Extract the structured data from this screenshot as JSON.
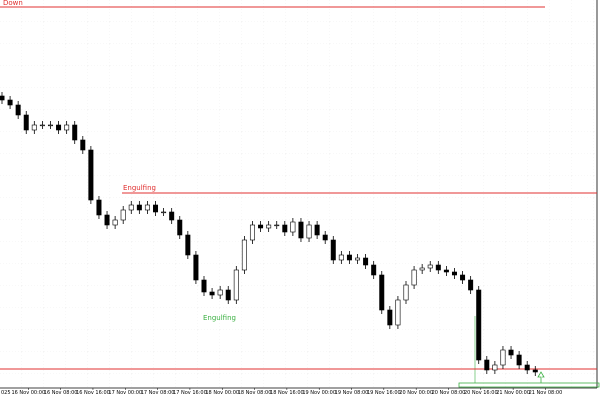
{
  "chart_data": {
    "type": "candlestick",
    "categories": [
      "025",
      null,
      null,
      null,
      "16 Nov 00:00",
      null,
      null,
      null,
      "16 Nov 08:00",
      null,
      null,
      null,
      "16 Nov 16:00",
      null,
      null,
      null,
      "17 Nov 00:00",
      null,
      null,
      null,
      "17 Nov 08:00",
      null,
      null,
      null,
      "17 Nov 16:00",
      null,
      null,
      null,
      "18 Nov 00:00",
      null,
      null,
      null,
      "18 Nov 08:00",
      null,
      null,
      null,
      "18 Nov 16:00",
      null,
      null,
      null,
      "19 Nov 00:00",
      null,
      null,
      null,
      "19 Nov 08:00",
      null,
      null,
      null,
      "19 Nov 16:00",
      null,
      null,
      null,
      "20 Nov 00:00",
      null,
      null,
      null,
      "20 Nov 08:00",
      null,
      null,
      null,
      "20 Nov 16:00",
      null,
      null,
      null,
      "21 Nov 00:00",
      null,
      null,
      null,
      "21 Nov 08:00"
    ],
    "open": [
      292,
      288,
      283,
      273,
      258,
      263,
      263,
      263,
      258,
      263,
      248,
      238,
      188,
      173,
      163,
      168,
      178,
      183,
      178,
      183,
      176,
      176,
      168,
      153,
      133,
      108,
      96,
      93,
      98,
      88,
      118,
      148,
      163,
      160,
      163,
      163,
      156,
      166,
      150,
      163,
      153,
      148,
      128,
      133,
      128,
      130,
      123,
      113,
      78,
      63,
      88,
      103,
      118,
      120,
      123,
      118,
      116,
      113,
      108,
      98,
      28,
      18,
      23,
      38,
      33,
      23,
      18,
      null,
      null
    ],
    "high": [
      296,
      292,
      287,
      277,
      267,
      267,
      267,
      267,
      267,
      267,
      252,
      242,
      192,
      177,
      172,
      182,
      187,
      187,
      187,
      187,
      180,
      180,
      172,
      157,
      137,
      112,
      100,
      102,
      102,
      122,
      152,
      167,
      167,
      167,
      167,
      167,
      170,
      170,
      167,
      167,
      157,
      152,
      137,
      137,
      134,
      134,
      127,
      117,
      82,
      92,
      107,
      122,
      124,
      127,
      127,
      122,
      120,
      117,
      112,
      102,
      32,
      27,
      42,
      42,
      37,
      27,
      22,
      null,
      null
    ],
    "low": [
      284,
      279,
      269,
      254,
      254,
      259,
      259,
      254,
      254,
      244,
      234,
      184,
      169,
      159,
      159,
      164,
      174,
      174,
      174,
      172,
      172,
      164,
      149,
      129,
      104,
      92,
      89,
      89,
      84,
      84,
      114,
      144,
      156,
      156,
      159,
      152,
      152,
      146,
      146,
      149,
      144,
      124,
      124,
      124,
      124,
      119,
      109,
      74,
      59,
      59,
      84,
      99,
      114,
      116,
      114,
      112,
      109,
      104,
      94,
      24,
      14,
      14,
      19,
      29,
      19,
      14,
      12,
      null,
      null
    ],
    "close": [
      288,
      283,
      273,
      258,
      263,
      263,
      263,
      258,
      263,
      248,
      238,
      188,
      173,
      163,
      168,
      178,
      183,
      178,
      183,
      176,
      176,
      168,
      153,
      133,
      108,
      96,
      93,
      98,
      88,
      118,
      148,
      163,
      160,
      163,
      163,
      156,
      166,
      150,
      163,
      153,
      148,
      128,
      133,
      128,
      130,
      123,
      113,
      78,
      63,
      88,
      103,
      118,
      120,
      123,
      118,
      116,
      113,
      108,
      98,
      28,
      18,
      23,
      38,
      33,
      23,
      18,
      16,
      null,
      null
    ],
    "ylim": [
      0,
      388
    ],
    "up_color": "#ffffff",
    "down_color": "#000000",
    "outline_color": "#000000",
    "levels": [
      {
        "value": 381,
        "color": "#e03030"
      },
      {
        "value": 195,
        "color": "#e03030"
      },
      {
        "value": 19,
        "color": "#e03030"
      }
    ],
    "annotations": [
      {
        "text": "Down",
        "color": "#e03030"
      },
      {
        "text": "Engulfing",
        "color": "#e03030"
      },
      {
        "text": "Engulfing",
        "color": "#3cb043"
      }
    ],
    "grid": true
  }
}
